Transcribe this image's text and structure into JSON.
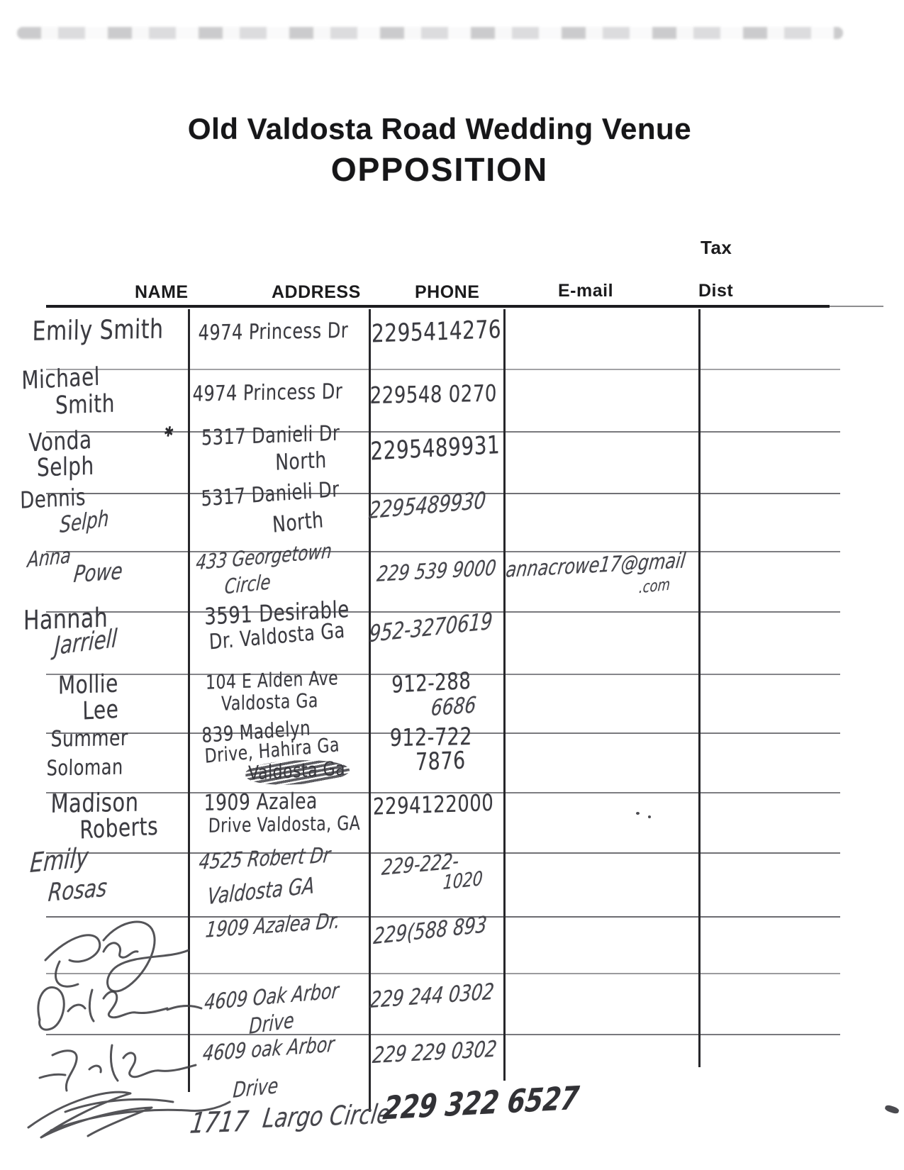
{
  "page": {
    "title": "Old Valdosta Road Wedding Venue",
    "subtitle": "OPPOSITION"
  },
  "table": {
    "headers": {
      "name": "NAME",
      "address": "ADDRESS",
      "phone": "PHONE",
      "email": "E-mail",
      "tax": "Tax",
      "dist": "Dist"
    },
    "rows": [
      {
        "name": "Emily Smith",
        "address": "4974 Princess Dr",
        "phone": "2295414276"
      },
      {
        "name": "Michael",
        "name2": "Smith",
        "address": "4974 Princess Dr",
        "phone": "229548 0270"
      },
      {
        "name": "Vonda",
        "name2": "Selph",
        "mark": "✱",
        "address": "5317 Danieli Dr",
        "address2": "North",
        "phone": "2295489931"
      },
      {
        "name": "Dennis",
        "name2": "Selph",
        "address": "5317 Danieli Dr",
        "address2": "North",
        "phone": "2295489930"
      },
      {
        "name": "Anna",
        "name2": "Powe",
        "address": "433 Georgetown",
        "address2": "Circle",
        "phone": "229 539 9000",
        "email": "annacrowe17@gmail",
        "email2": ".com"
      },
      {
        "name": "Hannah",
        "name2": "Jarriell",
        "address": "3591 Desirable",
        "address2": "Dr. Valdosta Ga",
        "phone": "952-3270619"
      },
      {
        "name": "Mollie",
        "name2": "Lee",
        "address": "104 E Alden Ave",
        "address2": "Valdosta Ga",
        "phone": "912-288",
        "phone2": "6686"
      },
      {
        "name": "Summer",
        "name2": "Soloman",
        "address": "839 Madelyn",
        "address2": "Drive, Hahira Ga",
        "address3": "Valdosta Ga",
        "phone": "912-722",
        "phone2": "7876"
      },
      {
        "name": "Madison",
        "name2": "Roberts",
        "address": "1909 Azalea",
        "address2": "Drive Valdosta, GA",
        "phone": "2294122000"
      },
      {
        "name": "Emily",
        "name2": "Rosas",
        "address": "4525 Robert Dr",
        "address2": "Valdosta GA",
        "phone": "229-222-",
        "phone2": "1020"
      },
      {
        "name": "Jeremy (signature, illegible)",
        "address": "1909 Azalea Dr.",
        "phone": "229(588 893"
      },
      {
        "name": "David Parker (signature, illegible)",
        "address": "4609 Oak Arbor",
        "address2": "Drive",
        "phone": "229 244 0302"
      },
      {
        "name": "Jony Parker (signature, illegible)",
        "address": "4609 oak Arbor",
        "address2": "Drive",
        "phone": "229 229 0302"
      }
    ],
    "footer_row": {
      "name": "(signature, illegible)",
      "number": "1717",
      "street": "Largo Circle",
      "phone": "229 322 6527"
    }
  }
}
